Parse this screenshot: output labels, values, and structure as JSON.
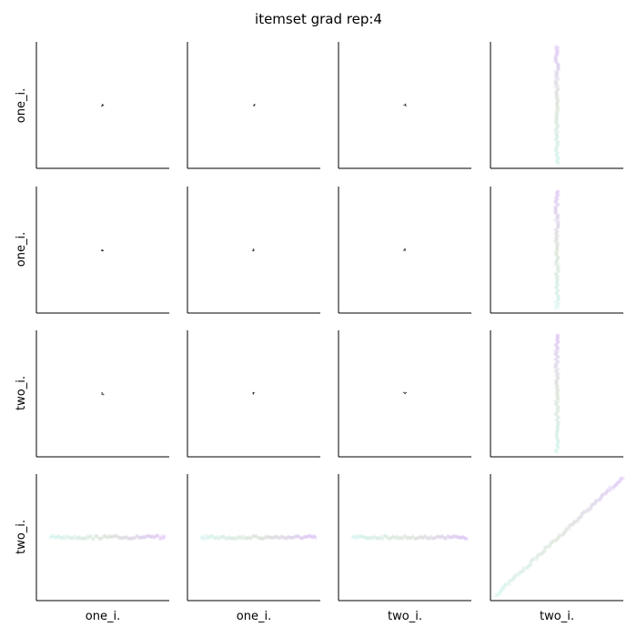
{
  "chart_data": {
    "type": "scatter",
    "title": "itemset grad rep:4",
    "variables": [
      "one_i.",
      "one_i.",
      "two_i.",
      "two_i."
    ],
    "row_labels": [
      "one_i.",
      "one_i.",
      "two_i.",
      "two_i."
    ],
    "col_labels": [
      "one_i.",
      "one_i.",
      "two_i.",
      "two_i."
    ],
    "grid": false,
    "colors": {
      "start": "#5fd8c2",
      "middle": "#7a9a6a",
      "end": "#8a2be2",
      "axis": "#000000",
      "small_marker": "#222222"
    },
    "marker_alpha": 0.12,
    "panels": [
      {
        "row": 0,
        "col": 0,
        "pattern": "tiny-cluster",
        "marker": "*"
      },
      {
        "row": 0,
        "col": 1,
        "pattern": "tiny-cluster",
        "marker": "*"
      },
      {
        "row": 0,
        "col": 2,
        "pattern": "tiny-cluster",
        "marker": "*"
      },
      {
        "row": 0,
        "col": 3,
        "pattern": "vertical-band"
      },
      {
        "row": 1,
        "col": 0,
        "pattern": "tiny-cluster",
        "marker": "*"
      },
      {
        "row": 1,
        "col": 1,
        "pattern": "tiny-cluster",
        "marker": "*"
      },
      {
        "row": 1,
        "col": 2,
        "pattern": "tiny-cluster",
        "marker": "*"
      },
      {
        "row": 1,
        "col": 3,
        "pattern": "vertical-band"
      },
      {
        "row": 2,
        "col": 0,
        "pattern": "tiny-cluster",
        "marker": "*"
      },
      {
        "row": 2,
        "col": 1,
        "pattern": "tiny-cluster",
        "marker": "*"
      },
      {
        "row": 2,
        "col": 2,
        "pattern": "tiny-cluster",
        "marker": "*"
      },
      {
        "row": 2,
        "col": 3,
        "pattern": "vertical-band"
      },
      {
        "row": 3,
        "col": 0,
        "pattern": "horizontal-band"
      },
      {
        "row": 3,
        "col": 1,
        "pattern": "horizontal-band"
      },
      {
        "row": 3,
        "col": 2,
        "pattern": "horizontal-band"
      },
      {
        "row": 3,
        "col": 3,
        "pattern": "diagonal"
      }
    ],
    "points_per_panel": 90
  }
}
